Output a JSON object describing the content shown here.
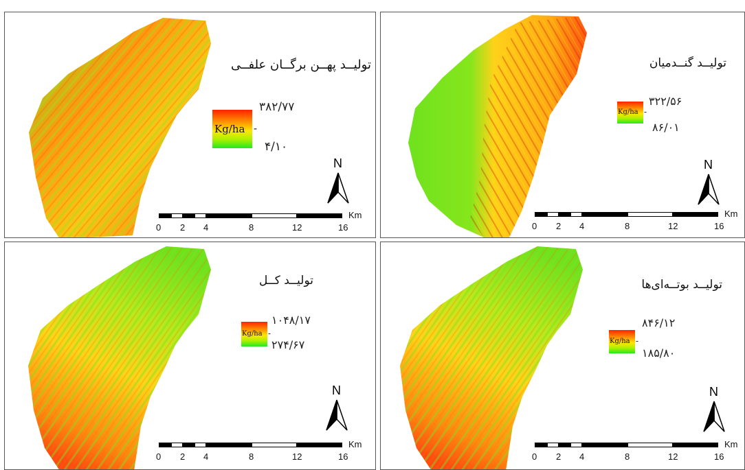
{
  "panels": [
    {
      "title": "تولیــد پهــن برگــان علفــی",
      "max": "۳۸۲/۷۷",
      "min": "۴/۱۰",
      "unit": "Kg/ha"
    },
    {
      "title": "تولیــد گنــدمیان",
      "max": "۳۲۲/۵۶",
      "min": "۸۶/۰۱",
      "unit": "Kg/ha"
    },
    {
      "title": "تولیــد کــل",
      "max": "۱۰۴۸/۱۷",
      "min": "۲۷۴/۶۷",
      "unit": "Kg/ha"
    },
    {
      "title": "تولیــد بوتــه‌ای‌ها",
      "max": "۸۴۶/۱۲",
      "min": "۱۸۵/۸۰",
      "unit": "Kg/ha"
    }
  ],
  "north_label": "N",
  "scale": {
    "unit": "Km",
    "ticks": [
      "0",
      "2",
      "4",
      "8",
      "12",
      "16"
    ]
  },
  "colors": {
    "high": "#ff2200",
    "mid": "#ffe600",
    "low": "#22e822"
  }
}
